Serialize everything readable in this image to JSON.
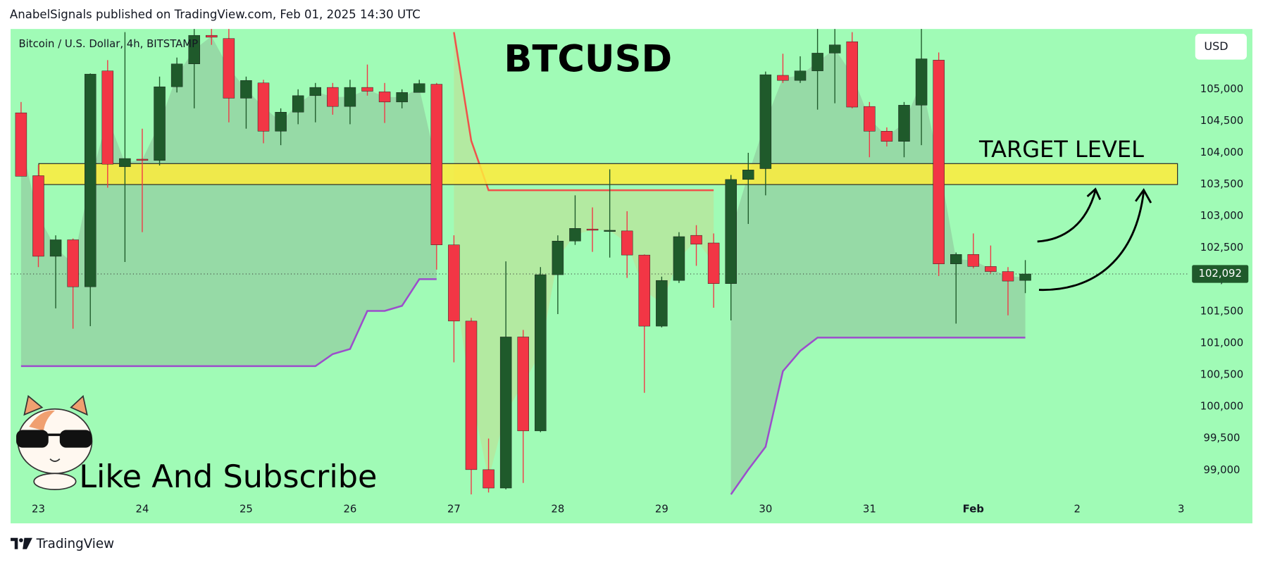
{
  "header": "AnabelSignals published on TradingView.com, Feb 01, 2025 14:30 UTC",
  "footer": "TradingView",
  "chart_data": {
    "type": "candlestick",
    "title": "BTCUSD",
    "subtitle": "Bitcoin / U.S. Dollar, 4h, BITSTAMP",
    "currency": "USD",
    "annotations": [
      "TARGET LEVEL",
      "Like And Subscribe"
    ],
    "x_labels": [
      "23",
      "24",
      "25",
      "26",
      "27",
      "28",
      "29",
      "30",
      "31",
      "Feb",
      "2",
      "3"
    ],
    "open": [
      104630,
      103640,
      102370,
      102630,
      101890,
      105290,
      103780,
      103900,
      103880,
      105040,
      105400,
      105850,
      105800,
      104860,
      105100,
      104340,
      104640,
      104900,
      105030,
      104730,
      105030,
      104960,
      104800,
      104950,
      105080,
      102550,
      101350,
      99010,
      98720,
      101100,
      99620,
      102080,
      102610,
      102800,
      102770,
      102770,
      102390,
      101270,
      101990,
      102700,
      102580,
      101940,
      103580,
      103750,
      105220,
      105140,
      105290,
      105570,
      105750,
      104730,
      104340,
      104180,
      104750,
      105460,
      102250,
      102400,
      102210,
      102130,
      101990
    ],
    "high": [
      104800,
      103810,
      102700,
      102650,
      105250,
      105460,
      105900,
      104380,
      105200,
      105500,
      105950,
      105950,
      105950,
      105200,
      105150,
      104700,
      105000,
      105100,
      105100,
      105150,
      105390,
      105100,
      105000,
      105150,
      105100,
      102700,
      101400,
      99500,
      102290,
      101210,
      102200,
      102700,
      103330,
      103140,
      103740,
      103080,
      102400,
      102050,
      102750,
      102860,
      102730,
      103650,
      104000,
      105280,
      105560,
      105520,
      105950,
      105950,
      105900,
      104800,
      104400,
      104800,
      105950,
      105580,
      102430,
      102730,
      102540,
      102200,
      102310
    ],
    "low": [
      103630,
      102200,
      101550,
      101230,
      101270,
      103450,
      102280,
      102750,
      103800,
      104950,
      104700,
      105700,
      104480,
      104380,
      104150,
      104120,
      104450,
      104480,
      104600,
      104450,
      104900,
      104470,
      104700,
      104950,
      102160,
      100700,
      98620,
      98650,
      98700,
      98800,
      99600,
      101460,
      102550,
      102440,
      102350,
      102030,
      100220,
      101250,
      101950,
      102220,
      101560,
      101360,
      102880,
      103330,
      105100,
      105100,
      104680,
      104780,
      104700,
      103930,
      104100,
      103930,
      104120,
      102060,
      101310,
      102180,
      102100,
      101440,
      101790
    ],
    "close": [
      103630,
      102370,
      102630,
      101890,
      105240,
      103820,
      103910,
      103880,
      105040,
      105400,
      105850,
      105820,
      104860,
      105140,
      104340,
      104640,
      104900,
      105030,
      104730,
      105030,
      104970,
      104800,
      104950,
      105090,
      102550,
      101350,
      99010,
      98720,
      101100,
      99620,
      102080,
      102610,
      102810,
      102780,
      102780,
      102390,
      101270,
      101990,
      102680,
      102560,
      101940,
      103580,
      103730,
      105230,
      105140,
      105290,
      105570,
      105700,
      104720,
      104340,
      104180,
      104750,
      105480,
      102250,
      102400,
      102210,
      102130,
      101980,
      102092
    ],
    "up_color": "#1f5a2b",
    "down_color": "#f23645",
    "supertrend_up": [
      100640,
      100640,
      100640,
      100640,
      100640,
      100640,
      100640,
      100640,
      100640,
      100640,
      100640,
      100640,
      100640,
      100640,
      100640,
      100640,
      100640,
      100640,
      100830,
      100910,
      101510,
      101510,
      101590,
      102010,
      102010,
      null,
      null,
      null,
      null,
      null,
      null,
      null,
      null,
      null,
      null,
      null,
      null,
      null,
      null,
      null,
      null,
      98620,
      99010,
      99370,
      100560,
      100880,
      101090,
      101090,
      101090,
      101090,
      101090,
      101090,
      101090,
      101090,
      101090,
      101090,
      101090,
      101090,
      101090
    ],
    "supertrend_up_color": "#9c4dcc",
    "supertrend_down": [
      null,
      null,
      null,
      null,
      null,
      null,
      null,
      null,
      null,
      null,
      null,
      null,
      null,
      null,
      null,
      null,
      null,
      null,
      null,
      null,
      null,
      null,
      null,
      null,
      null,
      105900,
      104190,
      103410,
      103410,
      103410,
      103410,
      103410,
      103410,
      103410,
      103410,
      103410,
      103410,
      103410,
      103410,
      103410,
      103410,
      null,
      null,
      null,
      null,
      null,
      null,
      null,
      null,
      null,
      null,
      null,
      null,
      null,
      null,
      null,
      null,
      null,
      null
    ],
    "supertrend_down_color": "#f0524a",
    "target_zone": [
      103500,
      103830
    ],
    "target_color": "#ffeb3b",
    "last_price": {
      "value": 102092,
      "label": "102,092"
    },
    "background": "#a0fbb6",
    "ylim": [
      98570,
      105950
    ],
    "yticks": [
      {
        "value": 99000,
        "label": "99,000"
      },
      {
        "value": 99500,
        "label": "99,500"
      },
      {
        "value": 100000,
        "label": "100,000"
      },
      {
        "value": 100500,
        "label": "100,500"
      },
      {
        "value": 101000,
        "label": "101,000"
      },
      {
        "value": 101500,
        "label": "101,500"
      },
      {
        "value": 102000,
        "label": "102,000"
      },
      {
        "value": 102500,
        "label": "102,500"
      },
      {
        "value": 103000,
        "label": "103,000"
      },
      {
        "value": 103500,
        "label": "103,500"
      },
      {
        "value": 104000,
        "label": "104,000"
      },
      {
        "value": 104500,
        "label": "104,500"
      },
      {
        "value": 105000,
        "label": "105,000"
      }
    ]
  }
}
